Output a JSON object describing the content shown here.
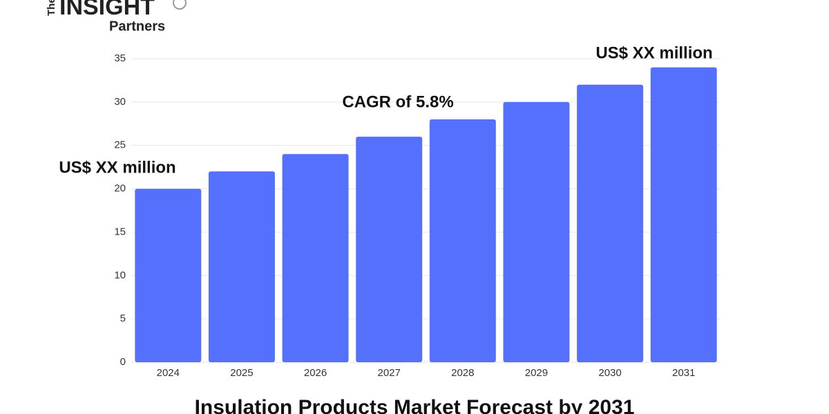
{
  "logo": {
    "top": "The",
    "main": "INSIGHT",
    "bottom": "Partners"
  },
  "chart_data": {
    "type": "bar",
    "title": "Insulation Products Market Forecast by 2031",
    "categories": [
      "2024",
      "2025",
      "2026",
      "2027",
      "2028",
      "2029",
      "2030",
      "2031"
    ],
    "values": [
      20,
      22,
      24,
      26,
      28,
      30,
      32,
      34
    ],
    "color": "#5470fd",
    "ylim": [
      0,
      35
    ],
    "yticks": [
      0,
      5,
      10,
      15,
      20,
      25,
      30,
      35
    ],
    "grid": true,
    "annotations": [
      "US$ XX million",
      "CAGR of 5.8%",
      "US$ XX million"
    ]
  }
}
